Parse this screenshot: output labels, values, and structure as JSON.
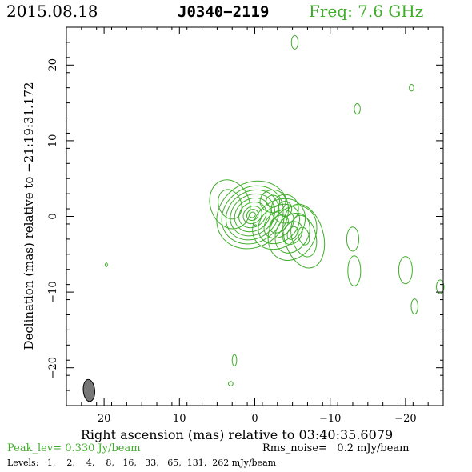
{
  "header": {
    "date": "2015.08.18",
    "source": "J0340−2119",
    "freq": "Freq: 7.6 GHz"
  },
  "footer": {
    "peak": "Peak_lev=  0.330 Jy/beam",
    "rms": "Rms_noise=   0.2 mJy/beam",
    "levels": "Levels:   1,    2,    4,    8,   16,   33,   65,  131,  262 mJy/beam"
  },
  "colors": {
    "contour": "#3fae2a",
    "text_green": "#3fae2a",
    "beam": "#777777"
  },
  "chart_data": {
    "type": "contour",
    "xlabel": "Right ascension (mas) relative to 03:40:35.6079",
    "ylabel": "Declination (mas) relative to −21:19:31.172",
    "xlim": [
      25,
      -25
    ],
    "ylim": [
      -25,
      25
    ],
    "x_ticks": [
      20,
      10,
      0,
      -10,
      -20
    ],
    "x_tick_labels": [
      "20",
      "10",
      "0",
      "−10",
      "−20"
    ],
    "y_ticks": [
      20,
      10,
      0,
      -10,
      -20
    ],
    "y_tick_labels": [
      "20",
      "10",
      "0",
      "−10",
      "−20"
    ],
    "contour_levels_mJy": [
      1,
      2,
      4,
      8,
      16,
      33,
      65,
      131,
      262
    ],
    "peak_Jy_per_beam": 0.33,
    "rms_mJy_per_beam": 0.2,
    "beam": {
      "x": 22,
      "y": -23,
      "major_mas": 2.6,
      "minor_mas": 1.2,
      "pa_deg": -5
    },
    "core_components": [
      {
        "x": 0.3,
        "y": 0.2,
        "rx": [
          5.0,
          4.3,
          3.7,
          3.1,
          2.5,
          1.9,
          1.3,
          0.8,
          0.4
        ],
        "ry": [
          4.2,
          3.6,
          3.1,
          2.6,
          2.1,
          1.6,
          1.1,
          0.7,
          0.35
        ],
        "angle": -35
      },
      {
        "x": -3.2,
        "y": -1.0,
        "rx": [
          3.8,
          3.0,
          2.2,
          1.4
        ],
        "ry": [
          3.0,
          2.3,
          1.6,
          1.0
        ],
        "angle": -40
      },
      {
        "x": -5.0,
        "y": -2.2,
        "rx": [
          3.8,
          2.8,
          1.6,
          0.9
        ],
        "ry": [
          3.0,
          2.1,
          1.2,
          0.6
        ],
        "angle": -60
      },
      {
        "x": -6.5,
        "y": -2.6,
        "rx": [
          2.6,
          1.6,
          0.7
        ],
        "ry": [
          4.3,
          2.8,
          1.2
        ],
        "angle": -15
      },
      {
        "x": 3.3,
        "y": 1.6,
        "rx": [
          2.6,
          1.5
        ],
        "ry": [
          3.3,
          2.0
        ],
        "angle": -20
      },
      {
        "x": -2.4,
        "y": 2.0,
        "rx": [
          1.7,
          0.9
        ],
        "ry": [
          1.5,
          0.8
        ],
        "angle": 0
      },
      {
        "x": -4.0,
        "y": 1.0,
        "rx": [
          1.8,
          0.9
        ],
        "ry": [
          1.9,
          1.0
        ],
        "angle": 0
      }
    ],
    "blobs": [
      {
        "x": -5.3,
        "y": 23.0,
        "rx": 0.45,
        "ry": 0.9
      },
      {
        "x": -20.8,
        "y": 17.0,
        "rx": 0.3,
        "ry": 0.45
      },
      {
        "x": -13.6,
        "y": 14.2,
        "rx": 0.4,
        "ry": 0.7
      },
      {
        "x": -13.0,
        "y": -3.0,
        "rx": 0.8,
        "ry": 1.6
      },
      {
        "x": -13.2,
        "y": -7.2,
        "rx": 0.85,
        "ry": 2.0
      },
      {
        "x": -20.0,
        "y": -7.1,
        "rx": 0.9,
        "ry": 1.8
      },
      {
        "x": -21.2,
        "y": -11.9,
        "rx": 0.45,
        "ry": 1.0
      },
      {
        "x": -24.6,
        "y": -9.3,
        "rx": 0.5,
        "ry": 0.9
      },
      {
        "x": 19.7,
        "y": -6.4,
        "rx": 0.15,
        "ry": 0.25
      },
      {
        "x": -0.1,
        "y": -1.2,
        "rx": 0.1,
        "ry": 0.1
      },
      {
        "x": 2.7,
        "y": -19.0,
        "rx": 0.3,
        "ry": 0.75
      },
      {
        "x": 3.2,
        "y": -22.1,
        "rx": 0.3,
        "ry": 0.3
      }
    ]
  }
}
